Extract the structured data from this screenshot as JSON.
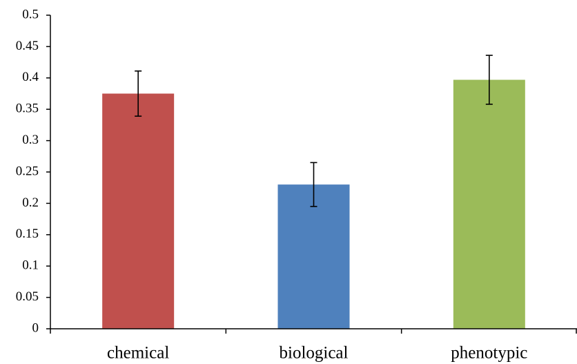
{
  "chart_data": {
    "type": "bar",
    "categories": [
      "chemical",
      "biological",
      "phenotypic"
    ],
    "values": [
      0.375,
      0.23,
      0.397
    ],
    "errors": [
      0.036,
      0.035,
      0.039
    ],
    "colors": [
      "#c0504d",
      "#4f81bd",
      "#9bbb59"
    ],
    "ylim": [
      0,
      0.5
    ],
    "yticks": [
      0,
      0.05,
      0.1,
      0.15,
      0.2,
      0.25,
      0.3,
      0.35,
      0.4,
      0.45,
      0.5
    ],
    "grid": false
  }
}
